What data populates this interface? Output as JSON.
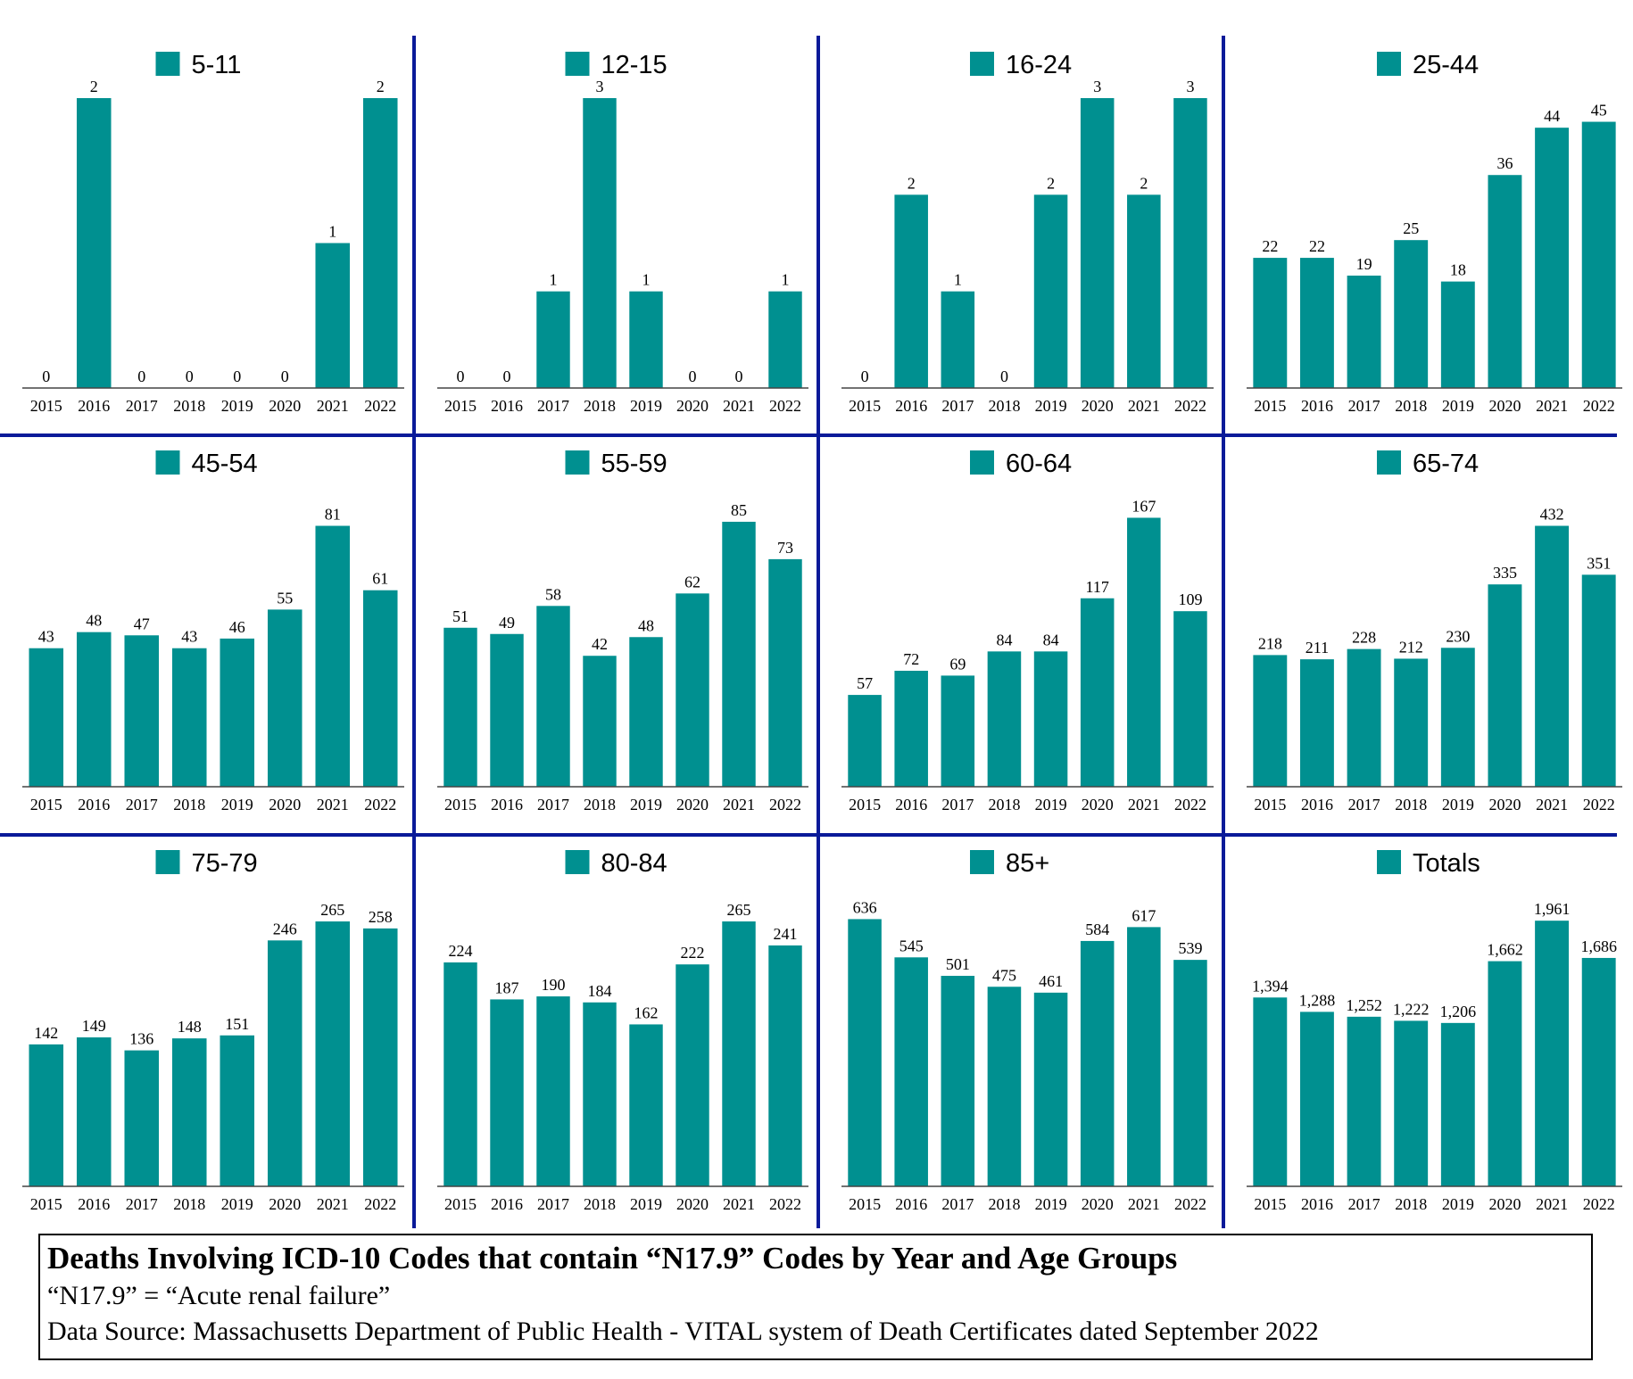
{
  "colors": {
    "bar": "#009090",
    "divider": "#0a1a99",
    "axis": "#444444",
    "text": "#000000"
  },
  "chart_data": [
    {
      "type": "bar",
      "legend": "5-11",
      "categories": [
        "2015",
        "2016",
        "2017",
        "2018",
        "2019",
        "2020",
        "2021",
        "2022"
      ],
      "values": [
        0,
        2,
        0,
        0,
        0,
        0,
        1,
        2
      ],
      "ylim": [
        0,
        2
      ]
    },
    {
      "type": "bar",
      "legend": "12-15",
      "categories": [
        "2015",
        "2016",
        "2017",
        "2018",
        "2019",
        "2020",
        "2021",
        "2022"
      ],
      "values": [
        0,
        0,
        1,
        3,
        1,
        0,
        0,
        1
      ],
      "ylim": [
        0,
        3
      ]
    },
    {
      "type": "bar",
      "legend": "16-24",
      "categories": [
        "2015",
        "2016",
        "2017",
        "2018",
        "2019",
        "2020",
        "2021",
        "2022"
      ],
      "values": [
        0,
        2,
        1,
        0,
        2,
        3,
        2,
        3
      ],
      "ylim": [
        0,
        3
      ]
    },
    {
      "type": "bar",
      "legend": "25-44",
      "categories": [
        "2015",
        "2016",
        "2017",
        "2018",
        "2019",
        "2020",
        "2021",
        "2022"
      ],
      "values": [
        22,
        22,
        19,
        25,
        18,
        36,
        44,
        45
      ],
      "ylim": [
        0,
        49
      ]
    },
    {
      "type": "bar",
      "legend": "45-54",
      "categories": [
        "2015",
        "2016",
        "2017",
        "2018",
        "2019",
        "2020",
        "2021",
        "2022"
      ],
      "values": [
        43,
        48,
        47,
        43,
        46,
        55,
        81,
        61
      ],
      "ylim": [
        0,
        90
      ]
    },
    {
      "type": "bar",
      "legend": "55-59",
      "categories": [
        "2015",
        "2016",
        "2017",
        "2018",
        "2019",
        "2020",
        "2021",
        "2022"
      ],
      "values": [
        51,
        49,
        58,
        42,
        48,
        62,
        85,
        73
      ],
      "ylim": [
        0,
        93
      ]
    },
    {
      "type": "bar",
      "legend": "60-64",
      "categories": [
        "2015",
        "2016",
        "2017",
        "2018",
        "2019",
        "2020",
        "2021",
        "2022"
      ],
      "values": [
        57,
        72,
        69,
        84,
        84,
        117,
        167,
        109
      ],
      "ylim": [
        0,
        180
      ]
    },
    {
      "type": "bar",
      "legend": "65-74",
      "categories": [
        "2015",
        "2016",
        "2017",
        "2018",
        "2019",
        "2020",
        "2021",
        "2022"
      ],
      "values": [
        218,
        211,
        228,
        212,
        230,
        335,
        432,
        351
      ],
      "ylim": [
        0,
        480
      ]
    },
    {
      "type": "bar",
      "legend": "75-79",
      "categories": [
        "2015",
        "2016",
        "2017",
        "2018",
        "2019",
        "2020",
        "2021",
        "2022"
      ],
      "values": [
        142,
        149,
        136,
        148,
        151,
        246,
        265,
        258
      ],
      "ylim": [
        0,
        290
      ]
    },
    {
      "type": "bar",
      "legend": "80-84",
      "categories": [
        "2015",
        "2016",
        "2017",
        "2018",
        "2019",
        "2020",
        "2021",
        "2022"
      ],
      "values": [
        224,
        187,
        190,
        184,
        162,
        222,
        265,
        241
      ],
      "ylim": [
        0,
        290
      ]
    },
    {
      "type": "bar",
      "legend": "85+",
      "categories": [
        "2015",
        "2016",
        "2017",
        "2018",
        "2019",
        "2020",
        "2021",
        "2022"
      ],
      "values": [
        636,
        545,
        501,
        475,
        461,
        584,
        617,
        539
      ],
      "ylim": [
        0,
        690
      ]
    },
    {
      "type": "bar",
      "legend": "Totals",
      "categories": [
        "2015",
        "2016",
        "2017",
        "2018",
        "2019",
        "2020",
        "2021",
        "2022"
      ],
      "values": [
        1394,
        1288,
        1252,
        1222,
        1206,
        1662,
        1961,
        1686
      ],
      "value_labels": [
        "1,394",
        "1,288",
        "1,252",
        "1,222",
        "1,206",
        "1,662",
        "1,961",
        "1,686"
      ],
      "ylim": [
        0,
        2140
      ]
    }
  ],
  "footer": {
    "title": "Deaths Involving ICD-10 Codes that contain “N17.9” Codes by Year and Age Groups",
    "definition": "“N17.9” = “Acute renal failure”",
    "source": "Data Source:  Massachusetts Department of Public Health - VITAL system of Death Certificates dated September 2022"
  }
}
